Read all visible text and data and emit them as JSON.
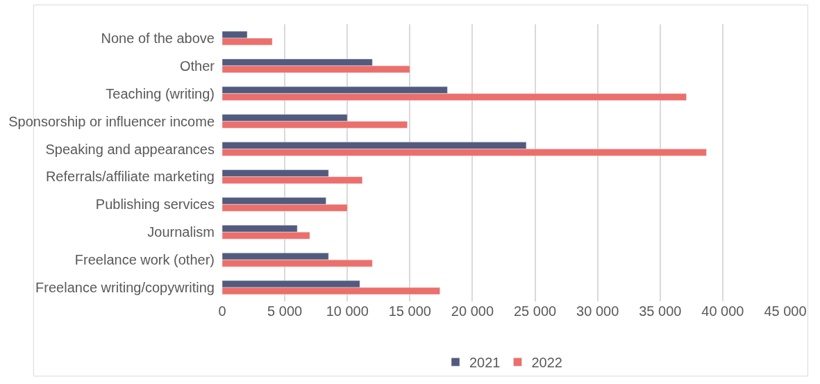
{
  "chart_data": {
    "type": "bar",
    "orientation": "horizontal",
    "categories": [
      "None of the above",
      "Other",
      "Teaching (writing)",
      "Sponsorship or influencer income",
      "Speaking and appearances",
      "Referrals/affiliate marketing",
      "Publishing services",
      "Journalism",
      "Freelance work (other)",
      "Freelance writing/copywriting"
    ],
    "series": [
      {
        "name": "2021",
        "color": "#525b7d",
        "values": [
          2000,
          12000,
          18000,
          10000,
          24300,
          8500,
          8300,
          6000,
          8500,
          11000
        ]
      },
      {
        "name": "2022",
        "color": "#ec6f6b",
        "values": [
          4000,
          15000,
          37100,
          14800,
          38700,
          11200,
          10000,
          7000,
          12000,
          17400
        ]
      }
    ],
    "xlim": [
      0,
      45000
    ],
    "xticks": [
      {
        "value": 0,
        "label": "0"
      },
      {
        "value": 5000,
        "label": "5 000"
      },
      {
        "value": 10000,
        "label": "10 000"
      },
      {
        "value": 15000,
        "label": "15 000"
      },
      {
        "value": 20000,
        "label": "20 000"
      },
      {
        "value": 25000,
        "label": "25 000"
      },
      {
        "value": 30000,
        "label": "30 000"
      },
      {
        "value": 35000,
        "label": "35 000"
      },
      {
        "value": 40000,
        "label": "40 000"
      },
      {
        "value": 45000,
        "label": "45 000"
      }
    ],
    "grid": "x",
    "legend": "bottom"
  }
}
